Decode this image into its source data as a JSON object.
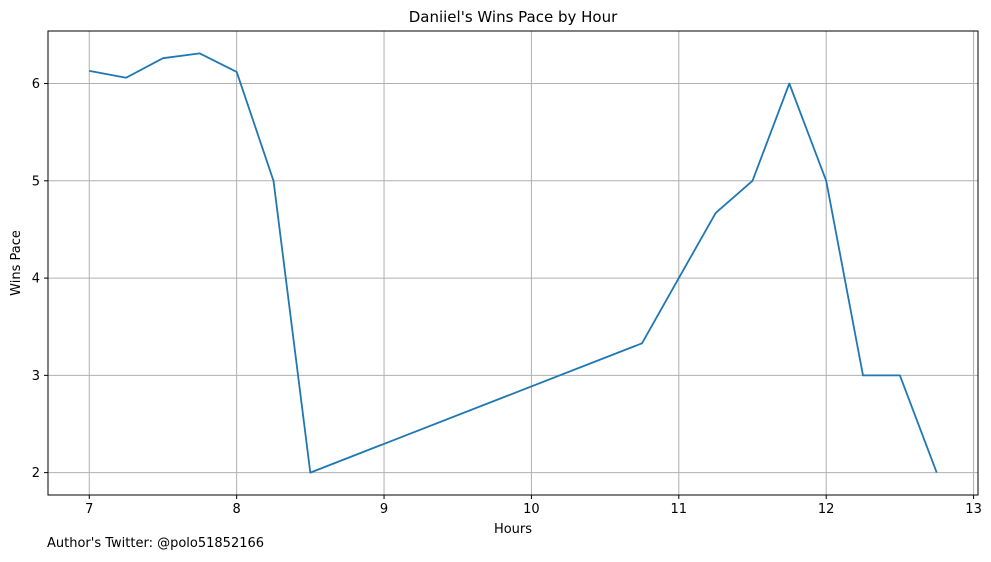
{
  "footer": {
    "credit": "Author's Twitter: @polo51852166"
  },
  "chart_data": {
    "type": "line",
    "title": "Daniiel's Wins Pace by Hour",
    "xlabel": "Hours",
    "ylabel": "Wins Pace",
    "xlim": [
      6.72,
      13.03
    ],
    "ylim": [
      1.77,
      6.54
    ],
    "xticks": [
      7,
      8,
      9,
      10,
      11,
      12,
      13
    ],
    "yticks": [
      2,
      3,
      4,
      5,
      6
    ],
    "grid": true,
    "line_color": "#1f77b4",
    "series": [
      {
        "x": [
          7.0,
          7.25,
          7.5,
          7.75,
          8.0,
          8.25,
          8.5,
          10.75,
          11.0,
          11.25,
          11.5,
          11.75,
          12.0,
          12.25,
          12.5,
          12.75
        ],
        "y": [
          6.13,
          6.06,
          6.26,
          6.31,
          6.12,
          5.0,
          2.0,
          3.33,
          4.0,
          4.67,
          5.0,
          6.0,
          5.0,
          3.0,
          3.0,
          2.0
        ]
      }
    ]
  }
}
